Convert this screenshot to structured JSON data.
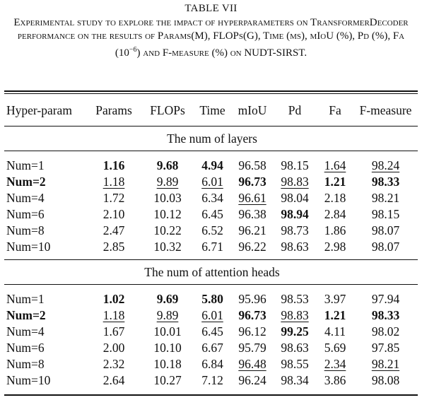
{
  "title": "TABLE VII",
  "caption": {
    "before": "Experimental study to explore the impact of hyperparameters on TransformerDecoder performance on the results of Params(M), FLOPs(G), Time (ms), mIoU (%), Pd (%), Fa (10",
    "superscript": "−6",
    "after": ") and F-measure (%) on NUDT-SIRST."
  },
  "table": {
    "header": [
      "Hyper-param",
      "Params",
      "FLOPs",
      "Time",
      "mIoU",
      "Pd",
      "Fa",
      "F-measure"
    ],
    "groups": [
      {
        "title": "The num of layers",
        "rows": [
          [
            "Num=1",
            "1.16",
            "9.68",
            "4.94",
            "96.58",
            "98.15",
            "1.64",
            "98.24"
          ],
          [
            "Num=2",
            "1.18",
            "9.89",
            "6.01",
            "96.73",
            "98.83",
            "1.21",
            "98.33"
          ],
          [
            "Num=4",
            "1.72",
            "10.03",
            "6.34",
            "96.61",
            "98.04",
            "2.18",
            "98.21"
          ],
          [
            "Num=6",
            "2.10",
            "10.12",
            "6.45",
            "96.38",
            "98.94",
            "2.84",
            "98.15"
          ],
          [
            "Num=8",
            "2.47",
            "10.22",
            "6.52",
            "96.21",
            "98.73",
            "1.86",
            "98.07"
          ],
          [
            "Num=10",
            "2.85",
            "10.32",
            "6.71",
            "96.22",
            "98.63",
            "2.98",
            "98.07"
          ]
        ]
      },
      {
        "title": "The num of attention heads",
        "rows": [
          [
            "Num=1",
            "1.02",
            "9.69",
            "5.80",
            "95.96",
            "98.53",
            "3.97",
            "97.94"
          ],
          [
            "Num=2",
            "1.18",
            "9.89",
            "6.01",
            "96.73",
            "98.83",
            "1.21",
            "98.33"
          ],
          [
            "Num=4",
            "1.67",
            "10.01",
            "6.45",
            "96.12",
            "99.25",
            "4.11",
            "98.02"
          ],
          [
            "Num=6",
            "2.00",
            "10.10",
            "6.67",
            "95.79",
            "98.63",
            "5.69",
            "97.85"
          ],
          [
            "Num=8",
            "2.32",
            "10.18",
            "6.84",
            "96.48",
            "98.55",
            "2.34",
            "98.21"
          ],
          [
            "Num=10",
            "2.64",
            "10.27",
            "7.12",
            "96.24",
            "98.34",
            "3.86",
            "98.08"
          ]
        ]
      }
    ]
  }
}
